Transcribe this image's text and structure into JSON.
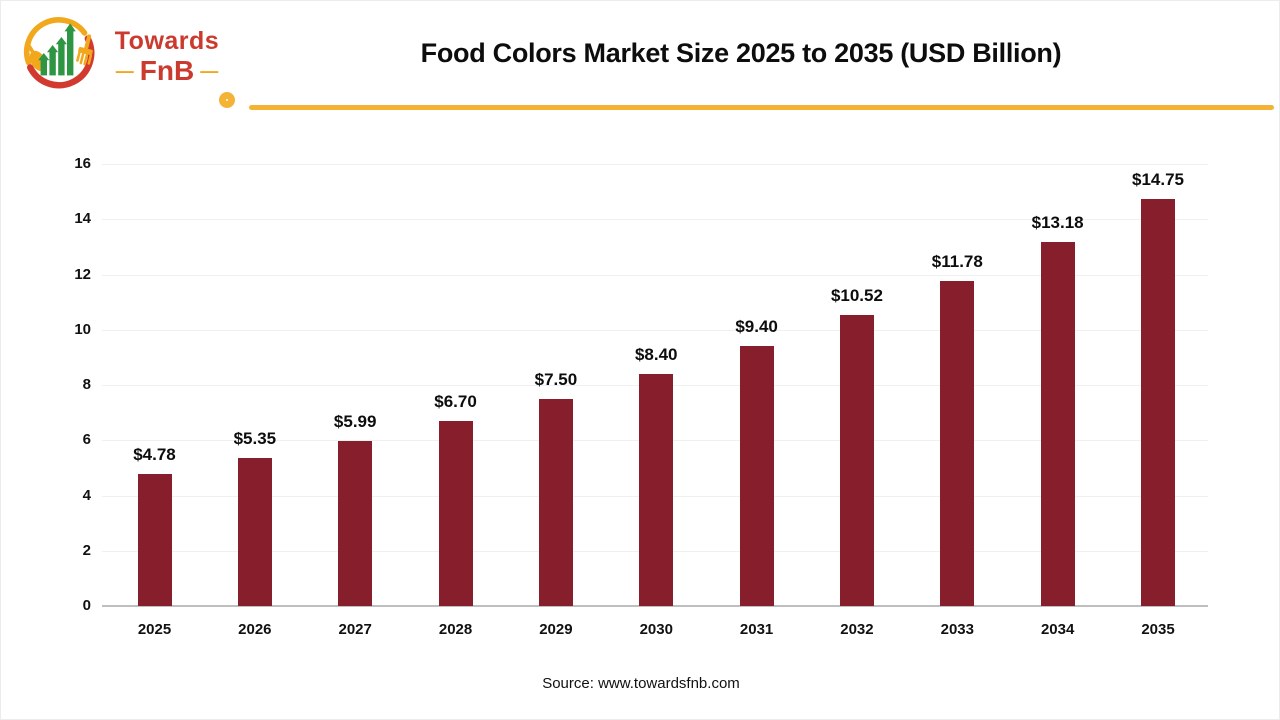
{
  "logo": {
    "name_top": "Towards",
    "name_bottom": "FnB",
    "dash": "—",
    "icon": "towardsfnb-logo (spoon, growth-arrow bars, fork in circle)"
  },
  "header": {
    "title": "Food Colors Market Size 2025 to 2035 (USD Billion)"
  },
  "chart_data": {
    "type": "bar",
    "title": "Food Colors Market Size 2025 to 2035 (USD Billion)",
    "categories": [
      "2025",
      "2026",
      "2027",
      "2028",
      "2029",
      "2030",
      "2031",
      "2032",
      "2033",
      "2034",
      "2035"
    ],
    "values": [
      4.78,
      5.35,
      5.99,
      6.7,
      7.5,
      8.4,
      9.4,
      10.52,
      11.78,
      13.18,
      14.75
    ],
    "value_labels": [
      "$4.78",
      "$5.35",
      "$5.99",
      "$6.70",
      "$7.50",
      "$8.40",
      "$9.40",
      "$10.52",
      "$11.78",
      "$13.18",
      "$14.75"
    ],
    "xlabel": "",
    "ylabel": "",
    "ylim": [
      0,
      16
    ],
    "yticks": [
      0,
      2,
      4,
      6,
      8,
      10,
      12,
      14,
      16
    ],
    "grid": true,
    "legend": false,
    "unit": "USD Billion"
  },
  "colors": {
    "bar": "#871e2c",
    "accent_yellow": "#f5b335",
    "logo_yellow": "#f2a81d",
    "logo_red": "#cb3a2e",
    "logo_green": "#2e9642",
    "gridline": "#f0f0f0",
    "axis": "#bfbfbf",
    "text": "#0d0d0d"
  },
  "footer": {
    "source": "Source: www.towardsfnb.com"
  }
}
